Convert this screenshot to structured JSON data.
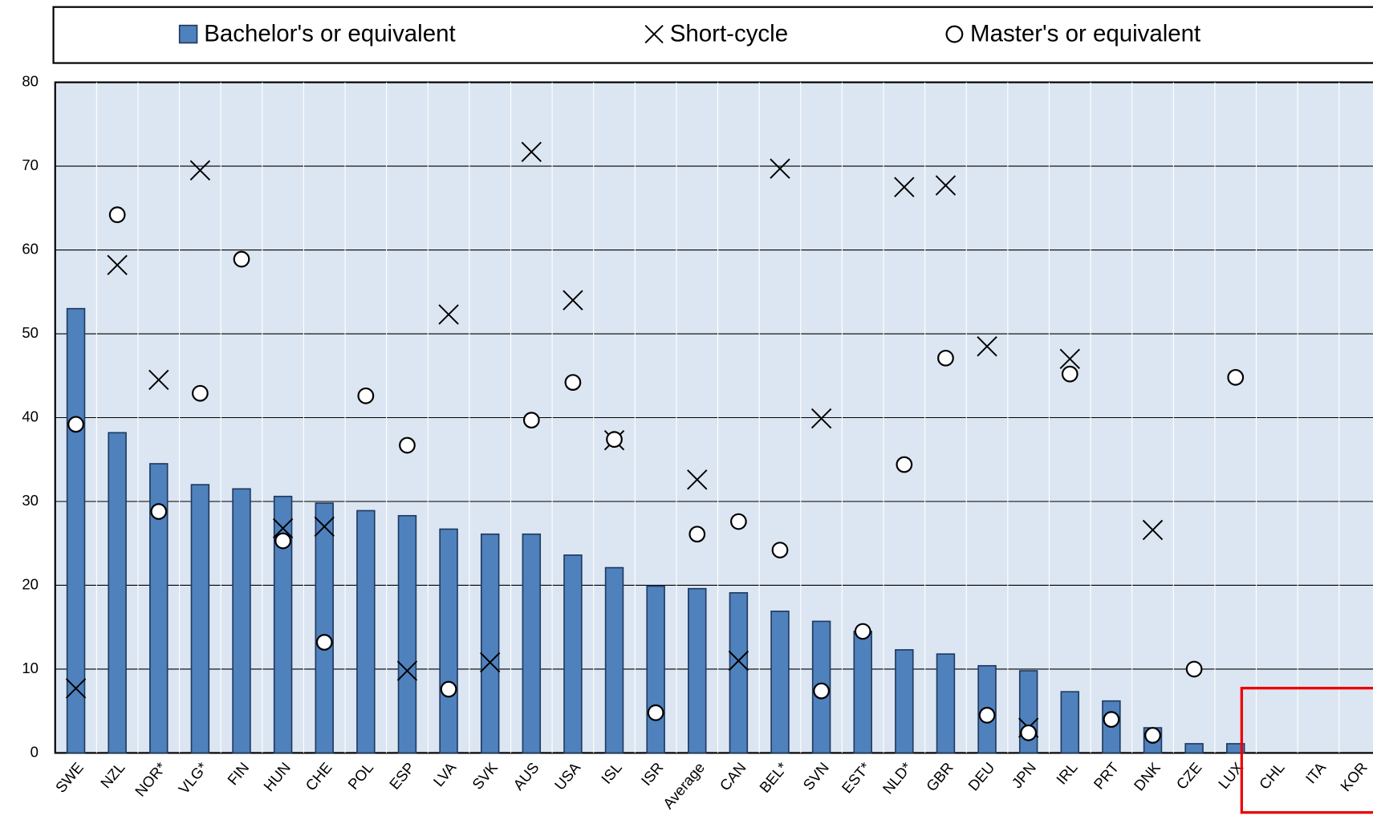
{
  "chart_data": {
    "type": "bar",
    "categories": [
      "SWE",
      "NZL",
      "NOR*",
      "VLG*",
      "FIN",
      "HUN",
      "CHE",
      "POL",
      "ESP",
      "LVA",
      "SVK",
      "AUS",
      "USA",
      "ISL",
      "ISR",
      "Average",
      "CAN",
      "BEL*",
      "SVN",
      "EST*",
      "NLD*",
      "GBR",
      "DEU",
      "JPN",
      "IRL",
      "PRT",
      "DNK",
      "CZE",
      "LUX",
      "CHL",
      "ITA",
      "KOR"
    ],
    "series": [
      {
        "name": "Bachelor's or equivalent",
        "color": "#4f81bd",
        "marker": "bar",
        "values": [
          53,
          38.2,
          34.5,
          32,
          31.5,
          30.6,
          29.8,
          28.9,
          28.3,
          26.7,
          26.1,
          26.1,
          23.6,
          22.1,
          19.9,
          19.6,
          19.1,
          16.9,
          15.7,
          14.5,
          12.3,
          11.8,
          10.4,
          9.8,
          7.3,
          6.2,
          3,
          1.1,
          1.1,
          null,
          null,
          null
        ]
      },
      {
        "name": "Short-cycle",
        "color": "#000000",
        "marker": "x",
        "values": [
          7.7,
          58.2,
          44.5,
          69.5,
          null,
          26.8,
          27,
          null,
          9.8,
          52.3,
          10.8,
          71.7,
          54,
          37.3,
          null,
          32.6,
          11,
          69.7,
          39.9,
          null,
          67.5,
          67.7,
          48.5,
          3,
          47,
          null,
          26.6,
          null,
          null,
          null,
          null,
          null
        ]
      },
      {
        "name": "Master's or equivalent",
        "color": "#000000",
        "marker": "circle",
        "values": [
          39.2,
          64.2,
          28.8,
          42.9,
          58.9,
          25.3,
          13.2,
          42.6,
          36.7,
          7.6,
          null,
          39.7,
          44.2,
          37.4,
          4.8,
          26.1,
          27.6,
          24.2,
          7.4,
          14.5,
          34.4,
          47.1,
          4.5,
          2.4,
          45.2,
          4,
          2.1,
          10,
          44.8,
          null,
          null,
          null
        ]
      }
    ],
    "ylim": [
      0,
      80
    ],
    "yticks": [
      0,
      10,
      20,
      30,
      40,
      50,
      60,
      70,
      80
    ],
    "grid": true
  }
}
